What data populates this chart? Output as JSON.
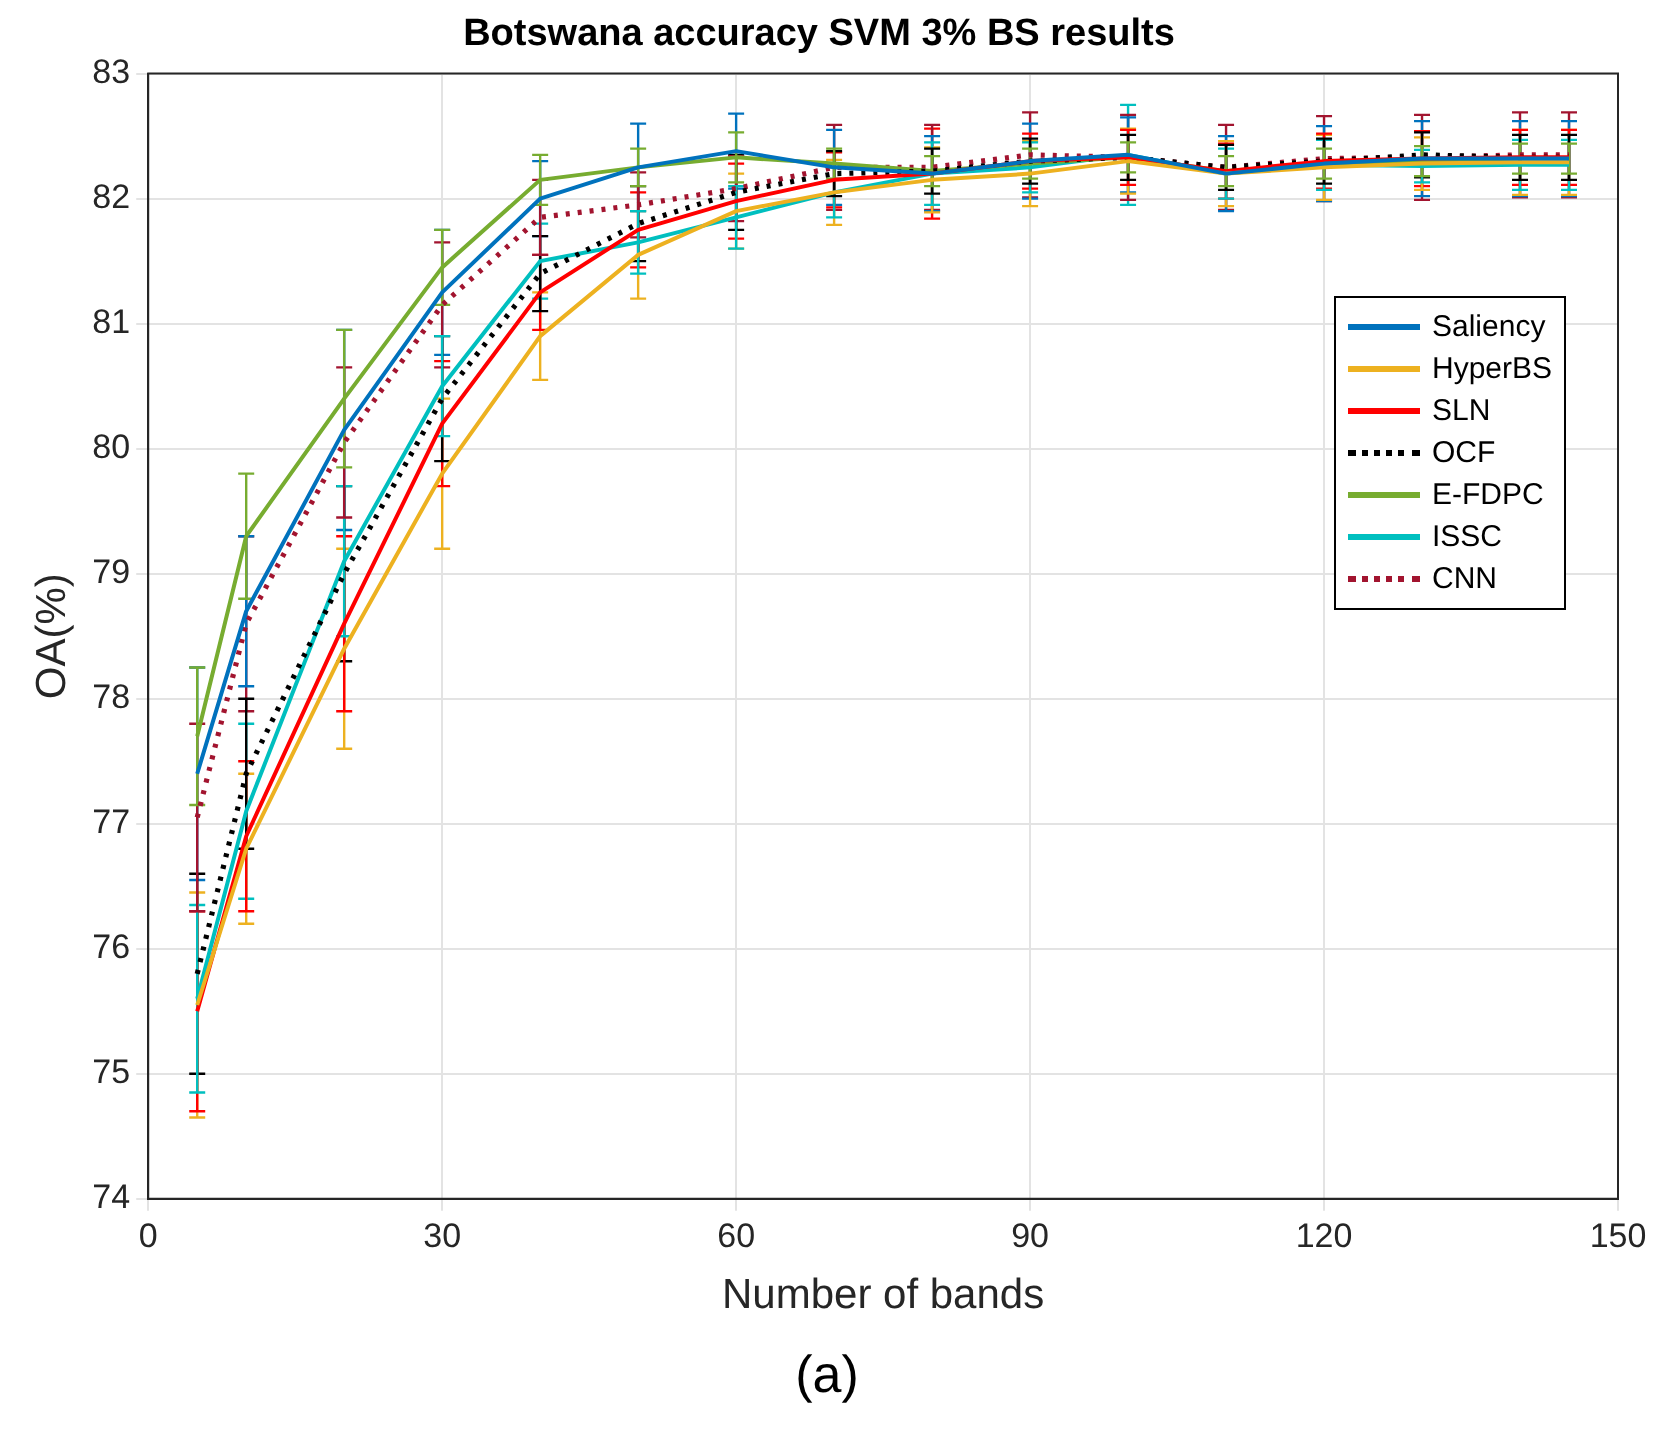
{
  "chart_data": {
    "type": "line",
    "title": "Botswana accuracy SVM 3% BS results",
    "xlabel": "Number of bands",
    "ylabel": "OA(%)",
    "annotations": [
      "(a)"
    ],
    "x": [
      5,
      10,
      20,
      30,
      40,
      50,
      60,
      70,
      80,
      90,
      100,
      110,
      120,
      130,
      140,
      145
    ],
    "xlim": [
      0,
      150
    ],
    "xticks": [
      0,
      30,
      60,
      90,
      120,
      150
    ],
    "ylim": [
      74,
      83
    ],
    "yticks": [
      74,
      75,
      76,
      77,
      78,
      79,
      80,
      81,
      82,
      83
    ],
    "grid": true,
    "legend": "right",
    "marker": "none",
    "series": [
      {
        "name": "Saliency",
        "color": "#0072bd",
        "line_style": "solid",
        "values": [
          77.4,
          78.7,
          80.15,
          81.25,
          82.0,
          82.25,
          82.38,
          82.25,
          82.2,
          82.3,
          82.35,
          82.2,
          82.28,
          82.32,
          82.32,
          82.32
        ],
        "errors": [
          0.85,
          0.6,
          0.8,
          0.5,
          0.3,
          0.35,
          0.3,
          0.3,
          0.3,
          0.3,
          0.3,
          0.3,
          0.3,
          0.3,
          0.3,
          0.3
        ]
      },
      {
        "name": "HyperBS",
        "color": "#edb120",
        "line_style": "solid",
        "values": [
          75.55,
          76.8,
          78.4,
          79.8,
          80.9,
          81.55,
          81.9,
          82.05,
          82.15,
          82.2,
          82.3,
          82.2,
          82.25,
          82.28,
          82.29,
          82.29
        ],
        "errors": [
          0.9,
          0.6,
          0.8,
          0.6,
          0.35,
          0.35,
          0.3,
          0.26,
          0.26,
          0.26,
          0.26,
          0.26,
          0.26,
          0.21,
          0.26,
          0.26
        ]
      },
      {
        "name": "SLN",
        "color": "#ff0000",
        "line_style": "solid",
        "values": [
          75.5,
          76.9,
          78.6,
          80.2,
          81.25,
          81.75,
          81.98,
          82.15,
          82.2,
          82.3,
          82.33,
          82.22,
          82.3,
          82.32,
          82.33,
          82.33
        ],
        "errors": [
          0.8,
          0.6,
          0.7,
          0.5,
          0.3,
          0.3,
          0.3,
          0.22,
          0.36,
          0.22,
          0.22,
          0.22,
          0.22,
          0.22,
          0.22,
          0.22
        ]
      },
      {
        "name": "OCF",
        "color": "#000000",
        "line_style": "dotted",
        "values": [
          75.8,
          77.4,
          79.0,
          80.4,
          81.4,
          81.8,
          82.05,
          82.2,
          82.22,
          82.3,
          82.33,
          82.25,
          82.3,
          82.35,
          82.33,
          82.33
        ],
        "errors": [
          0.8,
          0.6,
          0.7,
          0.5,
          0.3,
          0.3,
          0.3,
          0.18,
          0.18,
          0.18,
          0.18,
          0.18,
          0.18,
          0.18,
          0.18,
          0.18
        ]
      },
      {
        "name": "E-FDPC",
        "color": "#77ac30",
        "line_style": "solid",
        "values": [
          77.7,
          79.3,
          80.4,
          81.45,
          82.15,
          82.25,
          82.33,
          82.28,
          82.22,
          82.28,
          82.33,
          82.22,
          82.28,
          82.3,
          82.32,
          82.32
        ],
        "errors": [
          0.55,
          0.5,
          0.55,
          0.3,
          0.2,
          0.15,
          0.2,
          0.12,
          0.12,
          0.12,
          0.12,
          0.12,
          0.12,
          0.12,
          0.12,
          0.12
        ]
      },
      {
        "name": "ISSC",
        "color": "#00bfbf",
        "line_style": "solid",
        "values": [
          75.6,
          77.1,
          79.1,
          80.5,
          81.5,
          81.65,
          81.85,
          82.05,
          82.2,
          82.25,
          82.35,
          82.2,
          82.27,
          82.26,
          82.27,
          82.27
        ],
        "errors": [
          0.75,
          0.7,
          0.6,
          0.4,
          0.3,
          0.25,
          0.25,
          0.2,
          0.25,
          0.2,
          0.4,
          0.2,
          0.2,
          0.13,
          0.2,
          0.2
        ]
      },
      {
        "name": "CNN",
        "color": "#a2142f",
        "line_style": "dotted",
        "values": [
          77.05,
          78.6,
          80.05,
          81.15,
          81.85,
          81.95,
          82.08,
          82.25,
          82.25,
          82.35,
          82.33,
          82.25,
          82.32,
          82.33,
          82.35,
          82.35
        ],
        "errors": [
          0.75,
          0.7,
          0.6,
          0.5,
          0.3,
          0.26,
          0.26,
          0.34,
          0.34,
          0.34,
          0.34,
          0.34,
          0.34,
          0.34,
          0.34,
          0.34
        ]
      }
    ]
  }
}
